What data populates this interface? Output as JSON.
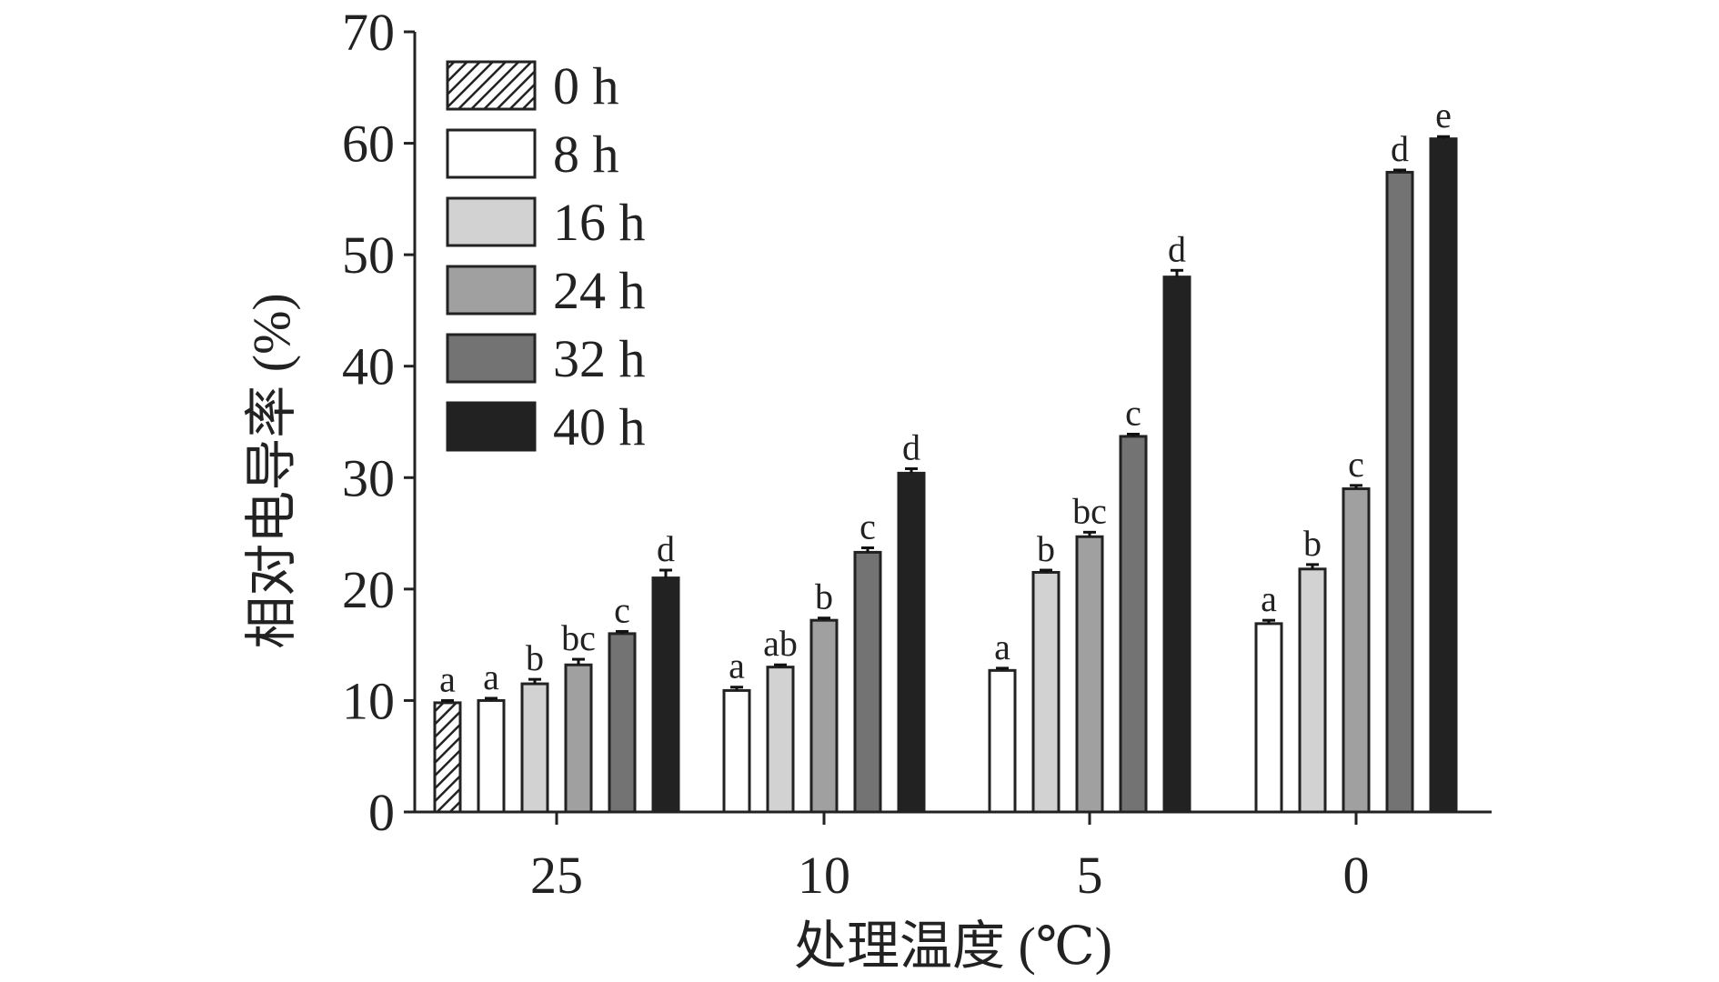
{
  "chart_data": {
    "type": "bar",
    "xlabel": "处理温度 (℃)",
    "ylabel": "相对电导率 (%)",
    "ylim": [
      0,
      70
    ],
    "yticks": [
      "0",
      "10",
      "20",
      "30",
      "40",
      "50",
      "60",
      "70"
    ],
    "categories": [
      "25",
      "10",
      "5",
      "0"
    ],
    "legend_placement": "top-left",
    "grid": false,
    "series": [
      {
        "name": "0 h",
        "fill": "hatch",
        "values": [
          9.8,
          null,
          null,
          null
        ],
        "errors": [
          0.2,
          0,
          0,
          0
        ],
        "labels": [
          "a",
          "",
          "",
          ""
        ]
      },
      {
        "name": "8 h",
        "fill": "#ffffff",
        "values": [
          10.0,
          10.9,
          12.7,
          16.9
        ],
        "errors": [
          0.2,
          0.3,
          0.2,
          0.3
        ],
        "labels": [
          "a",
          "a",
          "a",
          "a"
        ]
      },
      {
        "name": "16 h",
        "fill": "#d2d2d2",
        "values": [
          11.5,
          13.0,
          21.5,
          21.8
        ],
        "errors": [
          0.4,
          0.2,
          0.2,
          0.4
        ],
        "labels": [
          "b",
          "ab",
          "b",
          "b"
        ]
      },
      {
        "name": "24 h",
        "fill": "#a0a0a0",
        "values": [
          13.2,
          17.2,
          24.7,
          29.0
        ],
        "errors": [
          0.5,
          0.2,
          0.4,
          0.3
        ],
        "labels": [
          "bc",
          "b",
          "bc",
          "c"
        ]
      },
      {
        "name": "32 h",
        "fill": "#737373",
        "values": [
          16.0,
          23.3,
          33.7,
          57.4
        ],
        "errors": [
          0.2,
          0.4,
          0.2,
          0.2
        ],
        "labels": [
          "c",
          "c",
          "c",
          "d"
        ]
      },
      {
        "name": "40 h",
        "fill": "#222222",
        "values": [
          21.0,
          30.4,
          48.0,
          60.4
        ],
        "errors": [
          0.7,
          0.4,
          0.6,
          0.2
        ],
        "labels": [
          "d",
          "d",
          "d",
          "e"
        ]
      }
    ]
  }
}
